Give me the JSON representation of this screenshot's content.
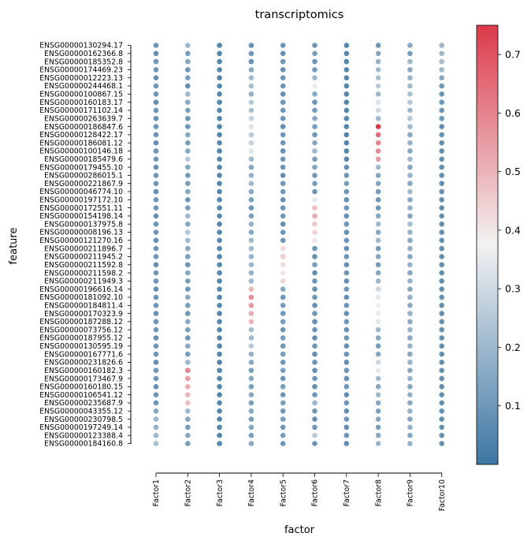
{
  "chart_data": {
    "type": "heatmap",
    "title": "transcriptomics",
    "xlabel": "factor",
    "ylabel": "feature",
    "x": [
      "Factor1",
      "Factor2",
      "Factor3",
      "Factor4",
      "Factor5",
      "Factor6",
      "Factor7",
      "Factor8",
      "Factor9",
      "Factor10"
    ],
    "y": [
      "ENSG00000130294.17",
      "ENSG00000162366.8",
      "ENSG00000185352.8",
      "ENSG00000174469.23",
      "ENSG00000012223.13",
      "ENSG00000244468.1",
      "ENSG00000100867.15",
      "ENSG00000160183.17",
      "ENSG00000171102.14",
      "ENSG00000263639.7",
      "ENSG00000186847.6",
      "ENSG00000128422.17",
      "ENSG00000186081.12",
      "ENSG00000100146.18",
      "ENSG00000185479.6",
      "ENSG00000179455.10",
      "ENSG00000286015.1",
      "ENSG00000221867.9",
      "ENSG00000046774.10",
      "ENSG00000197172.10",
      "ENSG00000172551.11",
      "ENSG00000154198.14",
      "ENSG00000137975.8",
      "ENSG00000008196.13",
      "ENSG00000121270.16",
      "ENSG00000211896.7",
      "ENSG00000211945.2",
      "ENSG00000211592.8",
      "ENSG00000211598.2",
      "ENSG00000211949.3",
      "ENSG00000196616.14",
      "ENSG00000181092.10",
      "ENSG00000184811.4",
      "ENSG00000170323.9",
      "ENSG00000187288.12",
      "ENSG00000073756.12",
      "ENSG00000187955.12",
      "ENSG00000130595.19",
      "ENSG00000167771.6",
      "ENSG00000231826.6",
      "ENSG00000160182.3",
      "ENSG00000173467.9",
      "ENSG00000160180.15",
      "ENSG00000106541.12",
      "ENSG00000235687.9",
      "ENSG00000043355.12",
      "ENSG00000230798.5",
      "ENSG00000197249.14",
      "ENSG00000123388.4",
      "ENSG00000184160.8"
    ],
    "values": [
      [
        0.1,
        0.2,
        0.05,
        0.08,
        0.1,
        0.1,
        0.05,
        0.1,
        0.15,
        0.2
      ],
      [
        0.08,
        0.12,
        0.05,
        0.1,
        0.08,
        0.12,
        0.05,
        0.15,
        0.12,
        0.2
      ],
      [
        0.1,
        0.15,
        0.05,
        0.08,
        0.1,
        0.1,
        0.05,
        0.18,
        0.2,
        0.22
      ],
      [
        0.1,
        0.1,
        0.05,
        0.15,
        0.08,
        0.12,
        0.05,
        0.2,
        0.15,
        0.2
      ],
      [
        0.08,
        0.12,
        0.05,
        0.2,
        0.1,
        0.2,
        0.05,
        0.22,
        0.18,
        0.15
      ],
      [
        0.1,
        0.08,
        0.05,
        0.22,
        0.1,
        0.36,
        0.05,
        0.26,
        0.2,
        0.1
      ],
      [
        0.1,
        0.2,
        0.05,
        0.18,
        0.08,
        0.15,
        0.05,
        0.2,
        0.22,
        0.1
      ],
      [
        0.08,
        0.15,
        0.05,
        0.25,
        0.1,
        0.1,
        0.05,
        0.33,
        0.25,
        0.1
      ],
      [
        0.1,
        0.12,
        0.05,
        0.22,
        0.1,
        0.12,
        0.05,
        0.3,
        0.2,
        0.1
      ],
      [
        0.08,
        0.1,
        0.05,
        0.28,
        0.1,
        0.15,
        0.05,
        0.2,
        0.25,
        0.1
      ],
      [
        0.1,
        0.1,
        0.05,
        0.33,
        0.08,
        0.12,
        0.05,
        0.75,
        0.2,
        0.08
      ],
      [
        0.1,
        0.15,
        0.05,
        0.25,
        0.1,
        0.1,
        0.05,
        0.65,
        0.15,
        0.08
      ],
      [
        0.08,
        0.12,
        0.05,
        0.28,
        0.1,
        0.15,
        0.05,
        0.6,
        0.18,
        0.08
      ],
      [
        0.1,
        0.15,
        0.05,
        0.34,
        0.08,
        0.2,
        0.05,
        0.58,
        0.15,
        0.08
      ],
      [
        0.1,
        0.25,
        0.05,
        0.2,
        0.1,
        0.12,
        0.05,
        0.55,
        0.2,
        0.08
      ],
      [
        0.08,
        0.15,
        0.05,
        0.15,
        0.1,
        0.15,
        0.08,
        0.2,
        0.15,
        0.08
      ],
      [
        0.1,
        0.1,
        0.05,
        0.18,
        0.08,
        0.1,
        0.1,
        0.15,
        0.18,
        0.08
      ],
      [
        0.1,
        0.12,
        0.05,
        0.2,
        0.1,
        0.12,
        0.12,
        0.15,
        0.15,
        0.08
      ],
      [
        0.08,
        0.15,
        0.05,
        0.15,
        0.1,
        0.1,
        0.1,
        0.12,
        0.2,
        0.08
      ],
      [
        0.1,
        0.1,
        0.05,
        0.12,
        0.08,
        0.35,
        0.08,
        0.1,
        0.15,
        0.08
      ],
      [
        0.1,
        0.12,
        0.05,
        0.1,
        0.1,
        0.48,
        0.1,
        0.1,
        0.18,
        0.08
      ],
      [
        0.08,
        0.2,
        0.05,
        0.12,
        0.1,
        0.52,
        0.08,
        0.15,
        0.15,
        0.08
      ],
      [
        0.1,
        0.15,
        0.05,
        0.18,
        0.08,
        0.46,
        0.1,
        0.2,
        0.22,
        0.08
      ],
      [
        0.1,
        0.25,
        0.05,
        0.15,
        0.1,
        0.44,
        0.08,
        0.15,
        0.18,
        0.08
      ],
      [
        0.08,
        0.2,
        0.05,
        0.2,
        0.1,
        0.4,
        0.1,
        0.2,
        0.15,
        0.08
      ],
      [
        0.1,
        0.15,
        0.05,
        0.2,
        0.42,
        0.1,
        0.08,
        0.12,
        0.18,
        0.08
      ],
      [
        0.1,
        0.12,
        0.05,
        0.18,
        0.45,
        0.08,
        0.1,
        0.15,
        0.15,
        0.08
      ],
      [
        0.08,
        0.1,
        0.05,
        0.2,
        0.42,
        0.12,
        0.08,
        0.12,
        0.18,
        0.08
      ],
      [
        0.1,
        0.15,
        0.05,
        0.18,
        0.4,
        0.08,
        0.1,
        0.15,
        0.15,
        0.08
      ],
      [
        0.1,
        0.12,
        0.05,
        0.2,
        0.43,
        0.1,
        0.08,
        0.2,
        0.18,
        0.08
      ],
      [
        0.08,
        0.1,
        0.05,
        0.5,
        0.15,
        0.08,
        0.1,
        0.3,
        0.15,
        0.08
      ],
      [
        0.1,
        0.15,
        0.05,
        0.58,
        0.1,
        0.1,
        0.08,
        0.35,
        0.18,
        0.08
      ],
      [
        0.1,
        0.12,
        0.05,
        0.55,
        0.12,
        0.08,
        0.1,
        0.38,
        0.15,
        0.08
      ],
      [
        0.08,
        0.1,
        0.05,
        0.52,
        0.1,
        0.1,
        0.08,
        0.36,
        0.18,
        0.08
      ],
      [
        0.1,
        0.15,
        0.05,
        0.5,
        0.12,
        0.08,
        0.1,
        0.34,
        0.15,
        0.08
      ],
      [
        0.1,
        0.12,
        0.05,
        0.22,
        0.1,
        0.1,
        0.08,
        0.2,
        0.18,
        0.08
      ],
      [
        0.08,
        0.1,
        0.05,
        0.2,
        0.12,
        0.08,
        0.1,
        0.15,
        0.15,
        0.08
      ],
      [
        0.1,
        0.15,
        0.05,
        0.25,
        0.1,
        0.1,
        0.08,
        0.12,
        0.18,
        0.08
      ],
      [
        0.1,
        0.12,
        0.05,
        0.18,
        0.12,
        0.08,
        0.1,
        0.15,
        0.15,
        0.08
      ],
      [
        0.08,
        0.2,
        0.05,
        0.15,
        0.1,
        0.1,
        0.08,
        0.3,
        0.18,
        0.08
      ],
      [
        0.1,
        0.6,
        0.05,
        0.12,
        0.12,
        0.08,
        0.1,
        0.35,
        0.15,
        0.08
      ],
      [
        0.1,
        0.55,
        0.05,
        0.15,
        0.1,
        0.1,
        0.08,
        0.2,
        0.18,
        0.08
      ],
      [
        0.08,
        0.52,
        0.05,
        0.12,
        0.12,
        0.08,
        0.1,
        0.15,
        0.15,
        0.08
      ],
      [
        0.1,
        0.5,
        0.05,
        0.15,
        0.1,
        0.1,
        0.08,
        0.2,
        0.18,
        0.08
      ],
      [
        0.1,
        0.48,
        0.05,
        0.12,
        0.12,
        0.2,
        0.1,
        0.15,
        0.15,
        0.08
      ],
      [
        0.15,
        0.2,
        0.05,
        0.15,
        0.1,
        0.1,
        0.08,
        0.12,
        0.18,
        0.08
      ],
      [
        0.2,
        0.15,
        0.05,
        0.12,
        0.12,
        0.08,
        0.1,
        0.15,
        0.15,
        0.08
      ],
      [
        0.18,
        0.12,
        0.05,
        0.15,
        0.1,
        0.1,
        0.08,
        0.12,
        0.18,
        0.08
      ],
      [
        0.2,
        0.15,
        0.05,
        0.12,
        0.12,
        0.25,
        0.1,
        0.15,
        0.15,
        0.08
      ],
      [
        0.22,
        0.12,
        0.05,
        0.15,
        0.1,
        0.1,
        0.08,
        0.2,
        0.18,
        0.08
      ]
    ],
    "colorbar": {
      "range": [
        0.0,
        0.75
      ],
      "ticks": [
        "0.1",
        "0.2",
        "0.3",
        "0.4",
        "0.5",
        "0.6",
        "0.7"
      ],
      "colors": {
        "low": "#3d76a3",
        "mid": "#f2f2f2",
        "high": "#dc3a4a"
      }
    },
    "grid": false,
    "legend": "colorbar-right"
  }
}
